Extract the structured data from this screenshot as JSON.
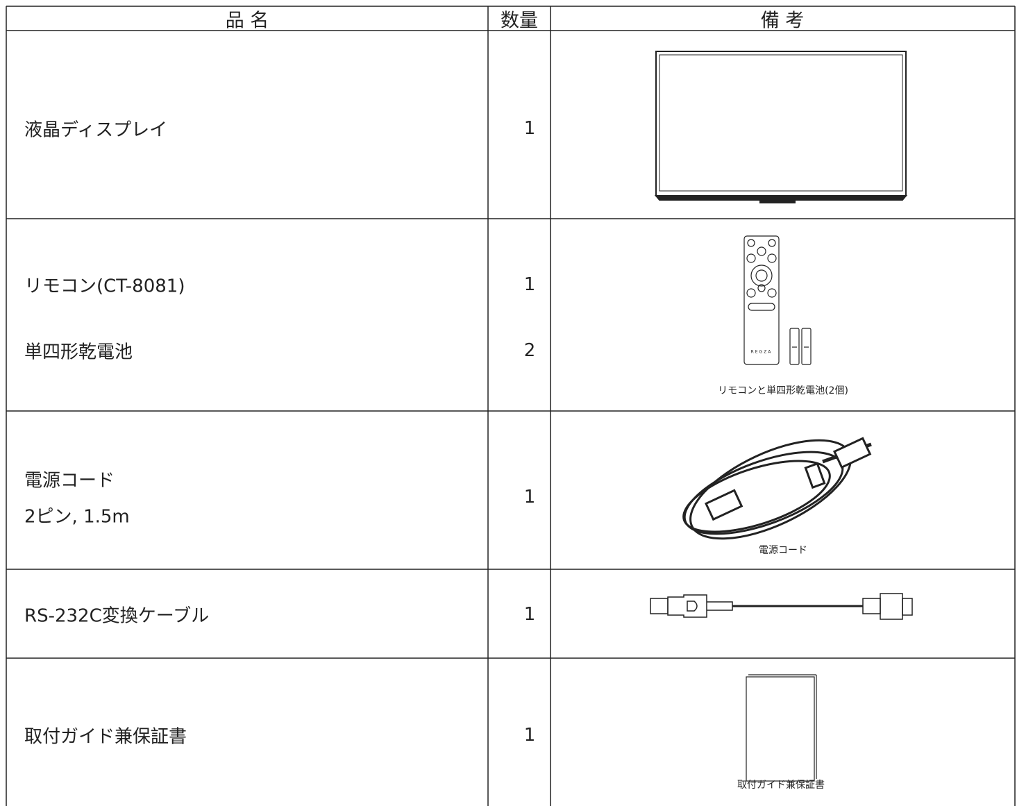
{
  "header": {
    "columns": [
      "品 名",
      "数量",
      "備 考"
    ]
  },
  "table": {
    "rows": [
      {
        "name": [
          "液晶ディスプレイ"
        ],
        "quantity": [
          1
        ]
      },
      {
        "name": [
          "リモコン(CT-8081)",
          "単四形乾電池"
        ],
        "quantity": [
          1,
          2
        ],
        "remote_brand": "REGZA",
        "caption": "リモコンと単四形乾電池(2個)"
      },
      {
        "name": [
          "電源コード",
          "2ピン, 1.5m"
        ],
        "quantity": [
          1
        ],
        "caption": "電源コード"
      },
      {
        "name": [
          "RS-232C変換ケーブル"
        ],
        "quantity": [
          1
        ]
      },
      {
        "name": [
          "取付ガイド兼保証書"
        ],
        "quantity": [
          1
        ],
        "caption": "取付ガイド兼保証書"
      }
    ]
  }
}
